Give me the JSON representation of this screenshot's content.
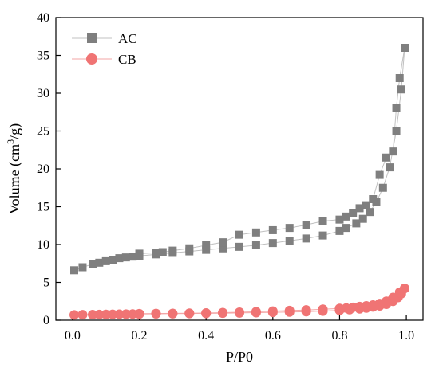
{
  "chart_data": {
    "type": "scatter",
    "xlabel": "P/P0",
    "ylabel_main": "Volume (cm",
    "ylabel_sup": "3",
    "ylabel_tail": "/g)",
    "xlim": [
      -0.05,
      1.05
    ],
    "ylim": [
      0,
      40
    ],
    "xticks": [
      0.0,
      0.2,
      0.4,
      0.6,
      0.8,
      1.0
    ],
    "xtick_labels": [
      "0.0",
      "0.2",
      "0.4",
      "0.6",
      "0.8",
      "1.0"
    ],
    "yticks": [
      0,
      5,
      10,
      15,
      20,
      25,
      30,
      35,
      40
    ],
    "ytick_labels": [
      "0",
      "5",
      "10",
      "15",
      "20",
      "25",
      "30",
      "35",
      "40"
    ],
    "legend_position": "top-left",
    "grid": false,
    "series": [
      {
        "name": "AC",
        "marker": "square",
        "color": "#7f7f7f",
        "line_color": "#c0c0c0",
        "adsorption": [
          [
            0.005,
            6.6
          ],
          [
            0.03,
            7.0
          ],
          [
            0.06,
            7.4
          ],
          [
            0.08,
            7.6
          ],
          [
            0.1,
            7.8
          ],
          [
            0.12,
            8.0
          ],
          [
            0.14,
            8.2
          ],
          [
            0.16,
            8.3
          ],
          [
            0.18,
            8.4
          ],
          [
            0.2,
            8.5
          ],
          [
            0.25,
            8.7
          ],
          [
            0.3,
            8.9
          ],
          [
            0.35,
            9.1
          ],
          [
            0.4,
            9.3
          ],
          [
            0.45,
            9.5
          ],
          [
            0.5,
            9.7
          ],
          [
            0.55,
            9.9
          ],
          [
            0.6,
            10.2
          ],
          [
            0.65,
            10.5
          ],
          [
            0.7,
            10.8
          ],
          [
            0.75,
            11.2
          ],
          [
            0.8,
            11.8
          ],
          [
            0.82,
            12.2
          ],
          [
            0.85,
            12.8
          ],
          [
            0.87,
            13.4
          ],
          [
            0.89,
            14.3
          ],
          [
            0.91,
            15.6
          ],
          [
            0.93,
            17.5
          ],
          [
            0.95,
            20.2
          ],
          [
            0.97,
            25.0
          ],
          [
            0.985,
            30.5
          ],
          [
            0.995,
            36.0
          ]
        ],
        "desorption": [
          [
            0.995,
            36.0
          ],
          [
            0.98,
            32.0
          ],
          [
            0.97,
            28.0
          ],
          [
            0.96,
            22.3
          ],
          [
            0.94,
            21.5
          ],
          [
            0.92,
            19.2
          ],
          [
            0.9,
            16.0
          ],
          [
            0.88,
            15.2
          ],
          [
            0.86,
            14.8
          ],
          [
            0.84,
            14.2
          ],
          [
            0.82,
            13.7
          ],
          [
            0.8,
            13.3
          ],
          [
            0.75,
            13.1
          ],
          [
            0.7,
            12.6
          ],
          [
            0.65,
            12.2
          ],
          [
            0.6,
            11.9
          ],
          [
            0.55,
            11.6
          ],
          [
            0.5,
            11.3
          ],
          [
            0.45,
            10.3
          ],
          [
            0.4,
            9.9
          ],
          [
            0.35,
            9.5
          ],
          [
            0.3,
            9.2
          ],
          [
            0.27,
            9.0
          ],
          [
            0.25,
            8.9
          ],
          [
            0.2,
            8.8
          ]
        ]
      },
      {
        "name": "CB",
        "marker": "circle",
        "color": "#f07474",
        "line_color": "#f3a6a6",
        "adsorption": [
          [
            0.005,
            0.7
          ],
          [
            0.03,
            0.72
          ],
          [
            0.06,
            0.74
          ],
          [
            0.08,
            0.75
          ],
          [
            0.1,
            0.76
          ],
          [
            0.12,
            0.78
          ],
          [
            0.14,
            0.79
          ],
          [
            0.16,
            0.8
          ],
          [
            0.18,
            0.81
          ],
          [
            0.2,
            0.82
          ],
          [
            0.25,
            0.84
          ],
          [
            0.3,
            0.86
          ],
          [
            0.35,
            0.88
          ],
          [
            0.4,
            0.9
          ],
          [
            0.45,
            0.93
          ],
          [
            0.5,
            0.96
          ],
          [
            0.55,
            1.0
          ],
          [
            0.6,
            1.04
          ],
          [
            0.65,
            1.08
          ],
          [
            0.7,
            1.13
          ],
          [
            0.75,
            1.2
          ],
          [
            0.8,
            1.3
          ],
          [
            0.83,
            1.4
          ],
          [
            0.86,
            1.5
          ],
          [
            0.88,
            1.6
          ],
          [
            0.9,
            1.75
          ],
          [
            0.92,
            1.9
          ],
          [
            0.94,
            2.1
          ],
          [
            0.96,
            2.5
          ],
          [
            0.975,
            3.0
          ],
          [
            0.985,
            3.5
          ],
          [
            0.995,
            4.2
          ]
        ],
        "desorption": [
          [
            0.995,
            4.2
          ],
          [
            0.98,
            3.7
          ],
          [
            0.96,
            3.0
          ],
          [
            0.94,
            2.5
          ],
          [
            0.92,
            2.2
          ],
          [
            0.9,
            2.0
          ],
          [
            0.88,
            1.9
          ],
          [
            0.86,
            1.8
          ],
          [
            0.84,
            1.7
          ],
          [
            0.82,
            1.6
          ],
          [
            0.8,
            1.55
          ],
          [
            0.75,
            1.45
          ],
          [
            0.7,
            1.35
          ],
          [
            0.65,
            1.27
          ],
          [
            0.6,
            1.2
          ],
          [
            0.55,
            1.12
          ],
          [
            0.5,
            1.05
          ],
          [
            0.45,
            1.0
          ],
          [
            0.4,
            0.95
          ],
          [
            0.35,
            0.92
          ],
          [
            0.3,
            0.9
          ],
          [
            0.25,
            0.88
          ],
          [
            0.2,
            0.86
          ]
        ]
      }
    ]
  }
}
